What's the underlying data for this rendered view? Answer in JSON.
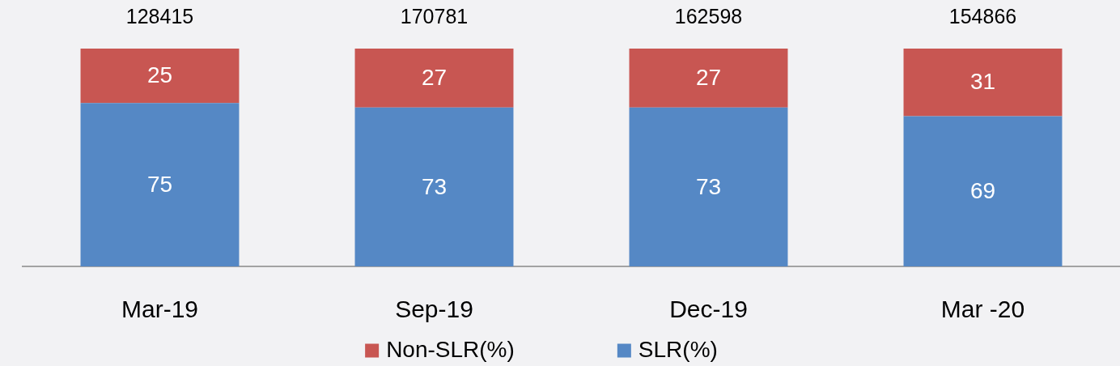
{
  "chart_data": {
    "type": "bar",
    "categories": [
      "Mar-19",
      "Sep-19",
      "Dec-19",
      "Mar -20"
    ],
    "stacked": true,
    "series": [
      {
        "name": "SLR(%)",
        "color": "#5588c5",
        "values": [
          75,
          73,
          73,
          69
        ]
      },
      {
        "name": "Non-SLR(%)",
        "color": "#c85652",
        "values": [
          25,
          27,
          27,
          31
        ]
      }
    ],
    "data_labels": true,
    "annotations": [
      {
        "text": "128415",
        "x": "Mar-19",
        "y": 100
      },
      {
        "text": "170781",
        "x": "Sep-19",
        "y": 100
      },
      {
        "text": "162598",
        "x": "Dec-19",
        "y": 100
      },
      {
        "text": "154866",
        "x": "Mar -20",
        "y": 100
      }
    ],
    "legend": "bottom",
    "tick_labels": "x"
  }
}
